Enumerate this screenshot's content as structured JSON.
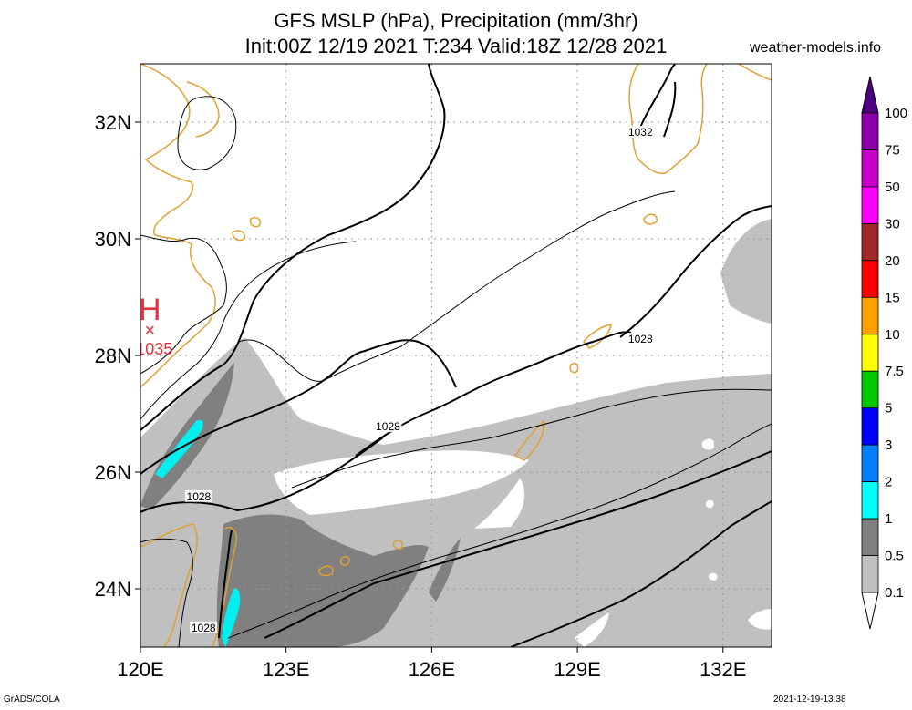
{
  "title_line1": "GFS MSLP (hPa), Precipitation (mm/3hr)",
  "title_line2": "Init:00Z 12/19 2021 T:234 Valid:18Z 12/28 2021",
  "site": "weather-models.info",
  "footer_left": "GrADS/COLA",
  "footer_right": "2021-12-19-13:38",
  "map": {
    "lon_range": [
      120,
      133
    ],
    "lat_range": [
      23,
      33
    ],
    "lat_ticks": [
      {
        "value": 32,
        "label": "32N"
      },
      {
        "value": 30,
        "label": "30N"
      },
      {
        "value": 28,
        "label": "28N"
      },
      {
        "value": 26,
        "label": "26N"
      },
      {
        "value": 24,
        "label": "24N"
      }
    ],
    "lon_ticks": [
      {
        "value": 120,
        "label": "120E"
      },
      {
        "value": 123,
        "label": "123E"
      },
      {
        "value": 126,
        "label": "126E"
      },
      {
        "value": 129,
        "label": "129E"
      },
      {
        "value": 132,
        "label": "132E"
      }
    ],
    "high_center": {
      "symbol": "H",
      "marker": "×",
      "value": "1035",
      "lon": 120.25,
      "lat": 28.55
    },
    "isobar_labels": [
      {
        "text": "1032",
        "lon": 130.3,
        "lat": 31.8
      },
      {
        "text": "1028",
        "lon": 130.3,
        "lat": 28.25
      },
      {
        "text": "1028",
        "lon": 125.1,
        "lat": 26.75
      },
      {
        "text": "1028",
        "lon": 121.2,
        "lat": 25.55
      },
      {
        "text": "1028",
        "lon": 121.3,
        "lat": 23.3
      }
    ],
    "colors": {
      "coast": "#e0a030",
      "precip_light": "#c0c0c0",
      "precip_mid": "#808080",
      "precip_heavy": "#00f0f0",
      "high_label": "#e8303a"
    }
  },
  "colorbar": {
    "labels": [
      "100",
      "75",
      "50",
      "30",
      "20",
      "15",
      "10",
      "7.5",
      "5",
      "3",
      "2",
      "1",
      "0.5",
      "0.1"
    ],
    "colors": [
      "#4b0082",
      "#8b00aa",
      "#c800c8",
      "#ff00ff",
      "#a0282a",
      "#ff0000",
      "#ffa000",
      "#ffff00",
      "#00c800",
      "#0000ff",
      "#0080ff",
      "#00ffff",
      "#808080",
      "#c0c0c0",
      "#ffffff"
    ]
  }
}
